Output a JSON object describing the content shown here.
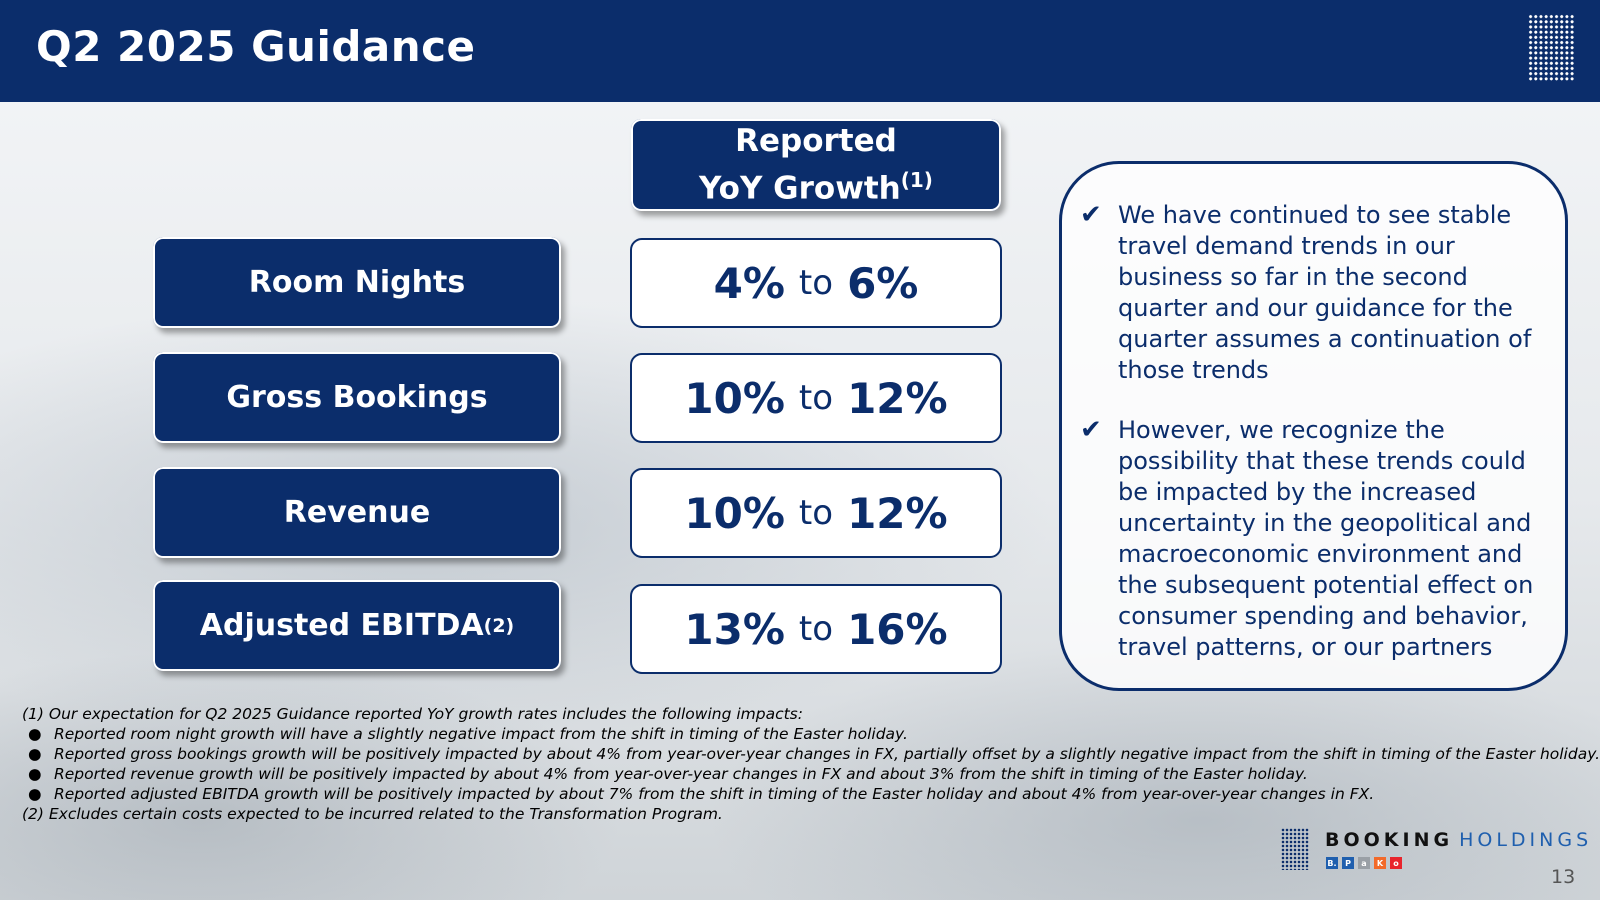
{
  "header": {
    "title": "Q2 2025 Guidance"
  },
  "column_header": {
    "line1": "Reported",
    "line2": "YoY Growth",
    "sup": "(1)"
  },
  "rows": [
    {
      "label": "Room Nights",
      "sup": "",
      "low": "4%",
      "to": "to",
      "high": "6%"
    },
    {
      "label": "Gross Bookings",
      "sup": "",
      "low": "10%",
      "to": "to",
      "high": "12%"
    },
    {
      "label": "Revenue",
      "sup": "",
      "low": "10%",
      "to": "to",
      "high": "12%"
    },
    {
      "label": "Adjusted EBITDA",
      "sup": "(2)",
      "low": "13%",
      "to": "to",
      "high": "16%"
    }
  ],
  "notes": [
    {
      "icon": "check-icon",
      "text": "We have continued to see stable travel demand trends in our business so far in the second quarter and our guidance for the quarter assumes a continuation of those trends"
    },
    {
      "icon": "check-icon",
      "text": "However, we recognize the possibility that these trends could be impacted by the increased uncertainty in the geopolitical and macroeconomic environment and the subsequent potential effect on consumer spending and behavior, travel patterns, or our partners"
    }
  ],
  "footnotes": {
    "note1": "(1) Our expectation for Q2 2025 Guidance reported YoY growth rates includes the following impacts:",
    "bullets": [
      "Reported room night growth will have a slightly negative impact from the shift in timing of the Easter holiday.",
      "Reported gross bookings growth will be positively impacted by about 4% from year-over-year changes in FX, partially offset by a slightly negative impact from the shift in timing of the Easter holiday.",
      "Reported revenue growth will be positively impacted by about 4% from year-over-year changes in FX and about 3% from the shift in timing of the Easter holiday.",
      "Reported adjusted EBITDA growth will be positively impacted by about 7% from the shift in timing of the Easter holiday and about 4% from year-over-year changes in FX."
    ],
    "note2": "(2) Excludes certain costs expected to be incurred related to the Transformation Program."
  },
  "logo": {
    "word1": "BOOKING",
    "word2": "HOLDINGS",
    "brands": [
      {
        "letter": "B.",
        "color": "#1f5fae"
      },
      {
        "letter": "P",
        "color": "#1f5fae"
      },
      {
        "letter": "a",
        "color": "#9aa0a6"
      },
      {
        "letter": "K",
        "color": "#f26a2a"
      },
      {
        "letter": "o",
        "color": "#e8242c"
      }
    ]
  },
  "page_number": "13"
}
